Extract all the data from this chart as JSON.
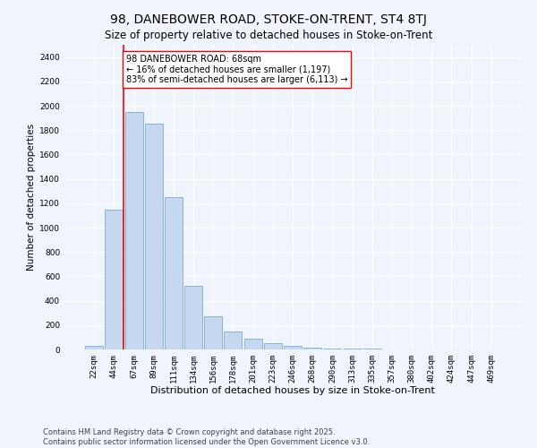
{
  "title": "98, DANEBOWER ROAD, STOKE-ON-TRENT, ST4 8TJ",
  "subtitle": "Size of property relative to detached houses in Stoke-on-Trent",
  "xlabel": "Distribution of detached houses by size in Stoke-on-Trent",
  "ylabel": "Number of detached properties",
  "categories": [
    "22sqm",
    "44sqm",
    "67sqm",
    "89sqm",
    "111sqm",
    "134sqm",
    "156sqm",
    "178sqm",
    "201sqm",
    "223sqm",
    "246sqm",
    "268sqm",
    "290sqm",
    "313sqm",
    "335sqm",
    "357sqm",
    "380sqm",
    "402sqm",
    "424sqm",
    "447sqm",
    "469sqm"
  ],
  "values": [
    30,
    1150,
    1950,
    1850,
    1250,
    520,
    270,
    150,
    85,
    50,
    30,
    15,
    10,
    6,
    4,
    3,
    2,
    2,
    1,
    1,
    1
  ],
  "bar_color": "#c5d8f0",
  "bar_edge_color": "#7bafd4",
  "property_line_color": "red",
  "property_line_index": 2,
  "annotation_text": "98 DANEBOWER ROAD: 68sqm\n← 16% of detached houses are smaller (1,197)\n83% of semi-detached houses are larger (6,113) →",
  "annotation_box_color": "white",
  "annotation_box_edge_color": "red",
  "ylim": [
    0,
    2500
  ],
  "yticks": [
    0,
    200,
    400,
    600,
    800,
    1000,
    1200,
    1400,
    1600,
    1800,
    2000,
    2200,
    2400
  ],
  "bg_color": "#f0f4fc",
  "grid_color": "white",
  "footer_text": "Contains HM Land Registry data © Crown copyright and database right 2025.\nContains public sector information licensed under the Open Government Licence v3.0.",
  "title_fontsize": 10,
  "subtitle_fontsize": 8.5,
  "xlabel_fontsize": 8,
  "ylabel_fontsize": 7.5,
  "tick_fontsize": 6.5,
  "annotation_fontsize": 7,
  "footer_fontsize": 6
}
